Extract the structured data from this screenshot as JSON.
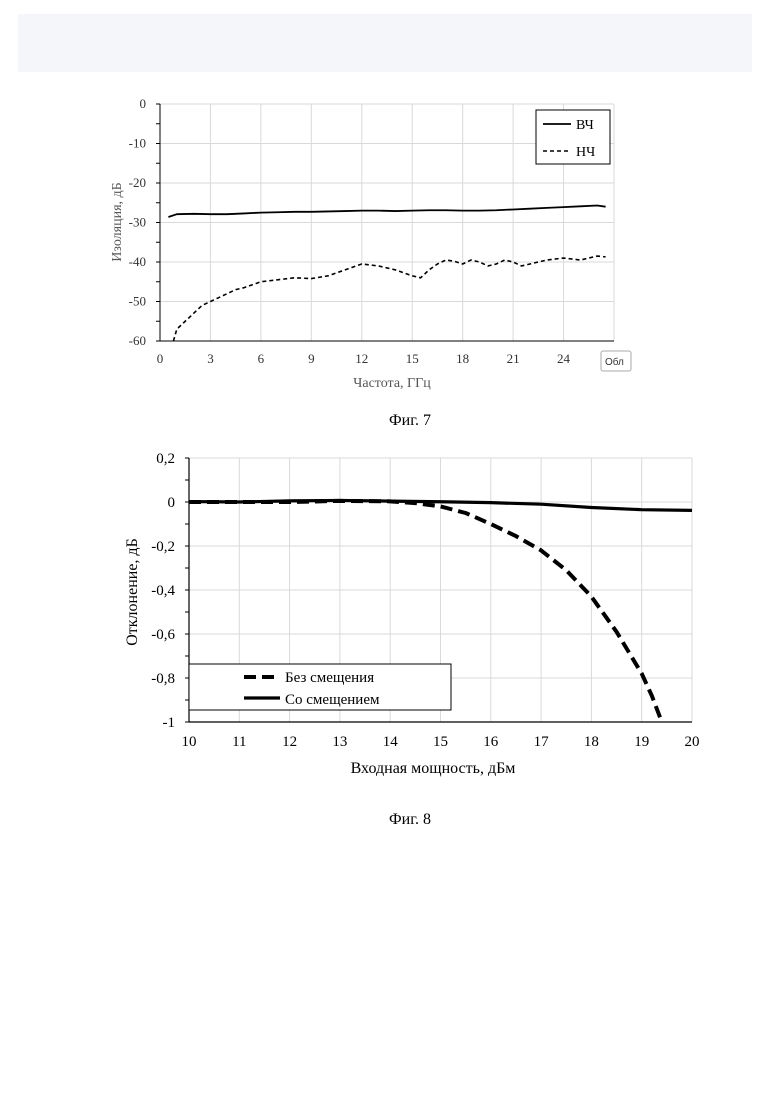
{
  "chart_data": [
    {
      "type": "line",
      "xlabel": "Частота, ГГц",
      "ylabel": "Изоляция, дБ",
      "xlim": [
        0,
        27
      ],
      "ylim": [
        -60,
        0
      ],
      "xticks": [
        "0",
        "3",
        "6",
        "9",
        "12",
        "15",
        "18",
        "21",
        "24"
      ],
      "yticks": [
        "0",
        "-10",
        "-20",
        "-30",
        "-40",
        "-50",
        "-60"
      ],
      "grid": true,
      "legend": "top-right",
      "caption": "Фиг. 7",
      "overlay_label": "Обл",
      "series": [
        {
          "name": "ВЧ",
          "style": "solid",
          "x": [
            0.5,
            1,
            2,
            3,
            4,
            5,
            6,
            7,
            8,
            9,
            10,
            11,
            12,
            13,
            14,
            15,
            16,
            17,
            18,
            19,
            20,
            21,
            22,
            23,
            24,
            25,
            26,
            26.5
          ],
          "values": [
            -28.6,
            -27.9,
            -27.8,
            -27.9,
            -27.9,
            -27.7,
            -27.5,
            -27.4,
            -27.3,
            -27.3,
            -27.2,
            -27.1,
            -27.0,
            -27.0,
            -27.1,
            -27.0,
            -26.9,
            -26.9,
            -27.0,
            -27.0,
            -26.9,
            -26.7,
            -26.5,
            -26.3,
            -26.1,
            -25.9,
            -25.7,
            -26.0
          ]
        },
        {
          "name": "НЧ",
          "style": "dashed",
          "x": [
            0.8,
            1,
            1.5,
            2,
            2.5,
            3,
            3.5,
            4,
            4.5,
            5,
            6,
            7,
            8,
            9,
            10,
            11,
            12,
            13,
            14,
            15,
            15.5,
            16,
            16.5,
            17,
            17.5,
            18,
            18.5,
            19,
            19.5,
            20,
            20.5,
            21,
            21.5,
            22,
            23,
            24,
            25,
            26,
            26.5
          ],
          "values": [
            -60,
            -57,
            -55,
            -53,
            -51,
            -50,
            -49,
            -48,
            -47,
            -46.5,
            -45,
            -44.5,
            -44,
            -44.2,
            -43.5,
            -42,
            -40.5,
            -41,
            -42,
            -43.5,
            -44,
            -42,
            -40.5,
            -39.5,
            -39.8,
            -40.5,
            -39.5,
            -40,
            -41,
            -40.5,
            -39.5,
            -40,
            -41,
            -40.5,
            -39.5,
            -39,
            -39.5,
            -38.5,
            -38.7
          ]
        }
      ]
    },
    {
      "type": "line",
      "xlabel": "Входная мощность, дБм",
      "ylabel": "Отклонение, дБ",
      "xlim": [
        10,
        20
      ],
      "ylim": [
        -1,
        0.2
      ],
      "xticks": [
        "10",
        "11",
        "12",
        "13",
        "14",
        "15",
        "16",
        "17",
        "18",
        "19",
        "20"
      ],
      "yticks": [
        "0,2",
        "0",
        "-0,2",
        "-0,4",
        "-0,6",
        "-0,8",
        "-1"
      ],
      "grid": true,
      "legend": "bottom-left",
      "caption": "Фиг. 8",
      "series": [
        {
          "name": "Без смещения",
          "style": "dashed",
          "x": [
            10,
            11,
            12,
            13,
            14,
            14.5,
            15,
            15.5,
            16,
            16.5,
            17,
            17.5,
            18,
            18.5,
            19,
            19.2,
            19.4
          ],
          "values": [
            0,
            0,
            0,
            0.005,
            0.003,
            -0.005,
            -0.02,
            -0.05,
            -0.1,
            -0.155,
            -0.22,
            -0.31,
            -0.43,
            -0.59,
            -0.78,
            -0.88,
            -1.0
          ]
        },
        {
          "name": "Со смещением",
          "style": "solid",
          "x": [
            10,
            11,
            12,
            13,
            14,
            15,
            16,
            17,
            18,
            19,
            20
          ],
          "values": [
            0.002,
            0.0,
            0.005,
            0.007,
            0.004,
            0.001,
            -0.003,
            -0.01,
            -0.025,
            -0.035,
            -0.038
          ]
        }
      ]
    }
  ]
}
